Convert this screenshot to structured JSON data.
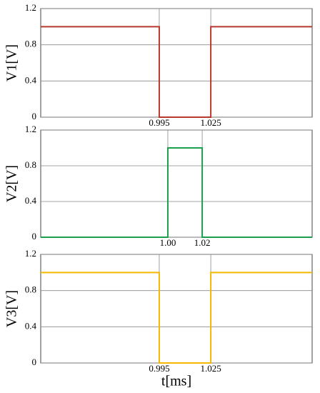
{
  "chart_data": [
    {
      "type": "line",
      "ylabel": "V1[V]",
      "x": [
        0.926,
        0.995,
        0.995,
        1.025,
        1.025,
        1.084
      ],
      "series": [
        {
          "color": "#b8392c",
          "values": [
            1,
            1,
            0,
            0,
            1,
            1
          ]
        }
      ],
      "xlim": [
        0.926,
        1.084
      ],
      "xticks": [
        0.995,
        1.025
      ],
      "ylim": [
        0,
        1.2
      ],
      "yticks": [
        0,
        0.4,
        0.8,
        1.2
      ],
      "grid": true
    },
    {
      "type": "line",
      "ylabel": "V2[V]",
      "x": [
        0.926,
        1.0,
        1.0,
        1.02,
        1.02,
        1.084
      ],
      "series": [
        {
          "color": "#1aa04a",
          "values": [
            0,
            0,
            1,
            1,
            0,
            0
          ]
        }
      ],
      "xlim": [
        0.926,
        1.084
      ],
      "xticks": [
        {
          "value": 1.0,
          "label": "1.00"
        },
        {
          "value": 1.02,
          "label": "1.02"
        }
      ],
      "ylim": [
        0,
        1.2
      ],
      "yticks": [
        0,
        0.4,
        0.8,
        1.2
      ],
      "grid": true
    },
    {
      "type": "line",
      "ylabel": "V3[V]",
      "xlabel": "t[ms]",
      "x": [
        0.926,
        0.995,
        0.995,
        1.025,
        1.025,
        1.084
      ],
      "series": [
        {
          "color": "#f5b700",
          "values": [
            1,
            1,
            0,
            0,
            1,
            1
          ]
        }
      ],
      "xlim": [
        0.926,
        1.084
      ],
      "xticks": [
        0.995,
        1.025
      ],
      "ylim": [
        0,
        1.2
      ],
      "yticks": [
        0,
        0.4,
        0.8,
        1.2
      ],
      "grid": true
    }
  ]
}
